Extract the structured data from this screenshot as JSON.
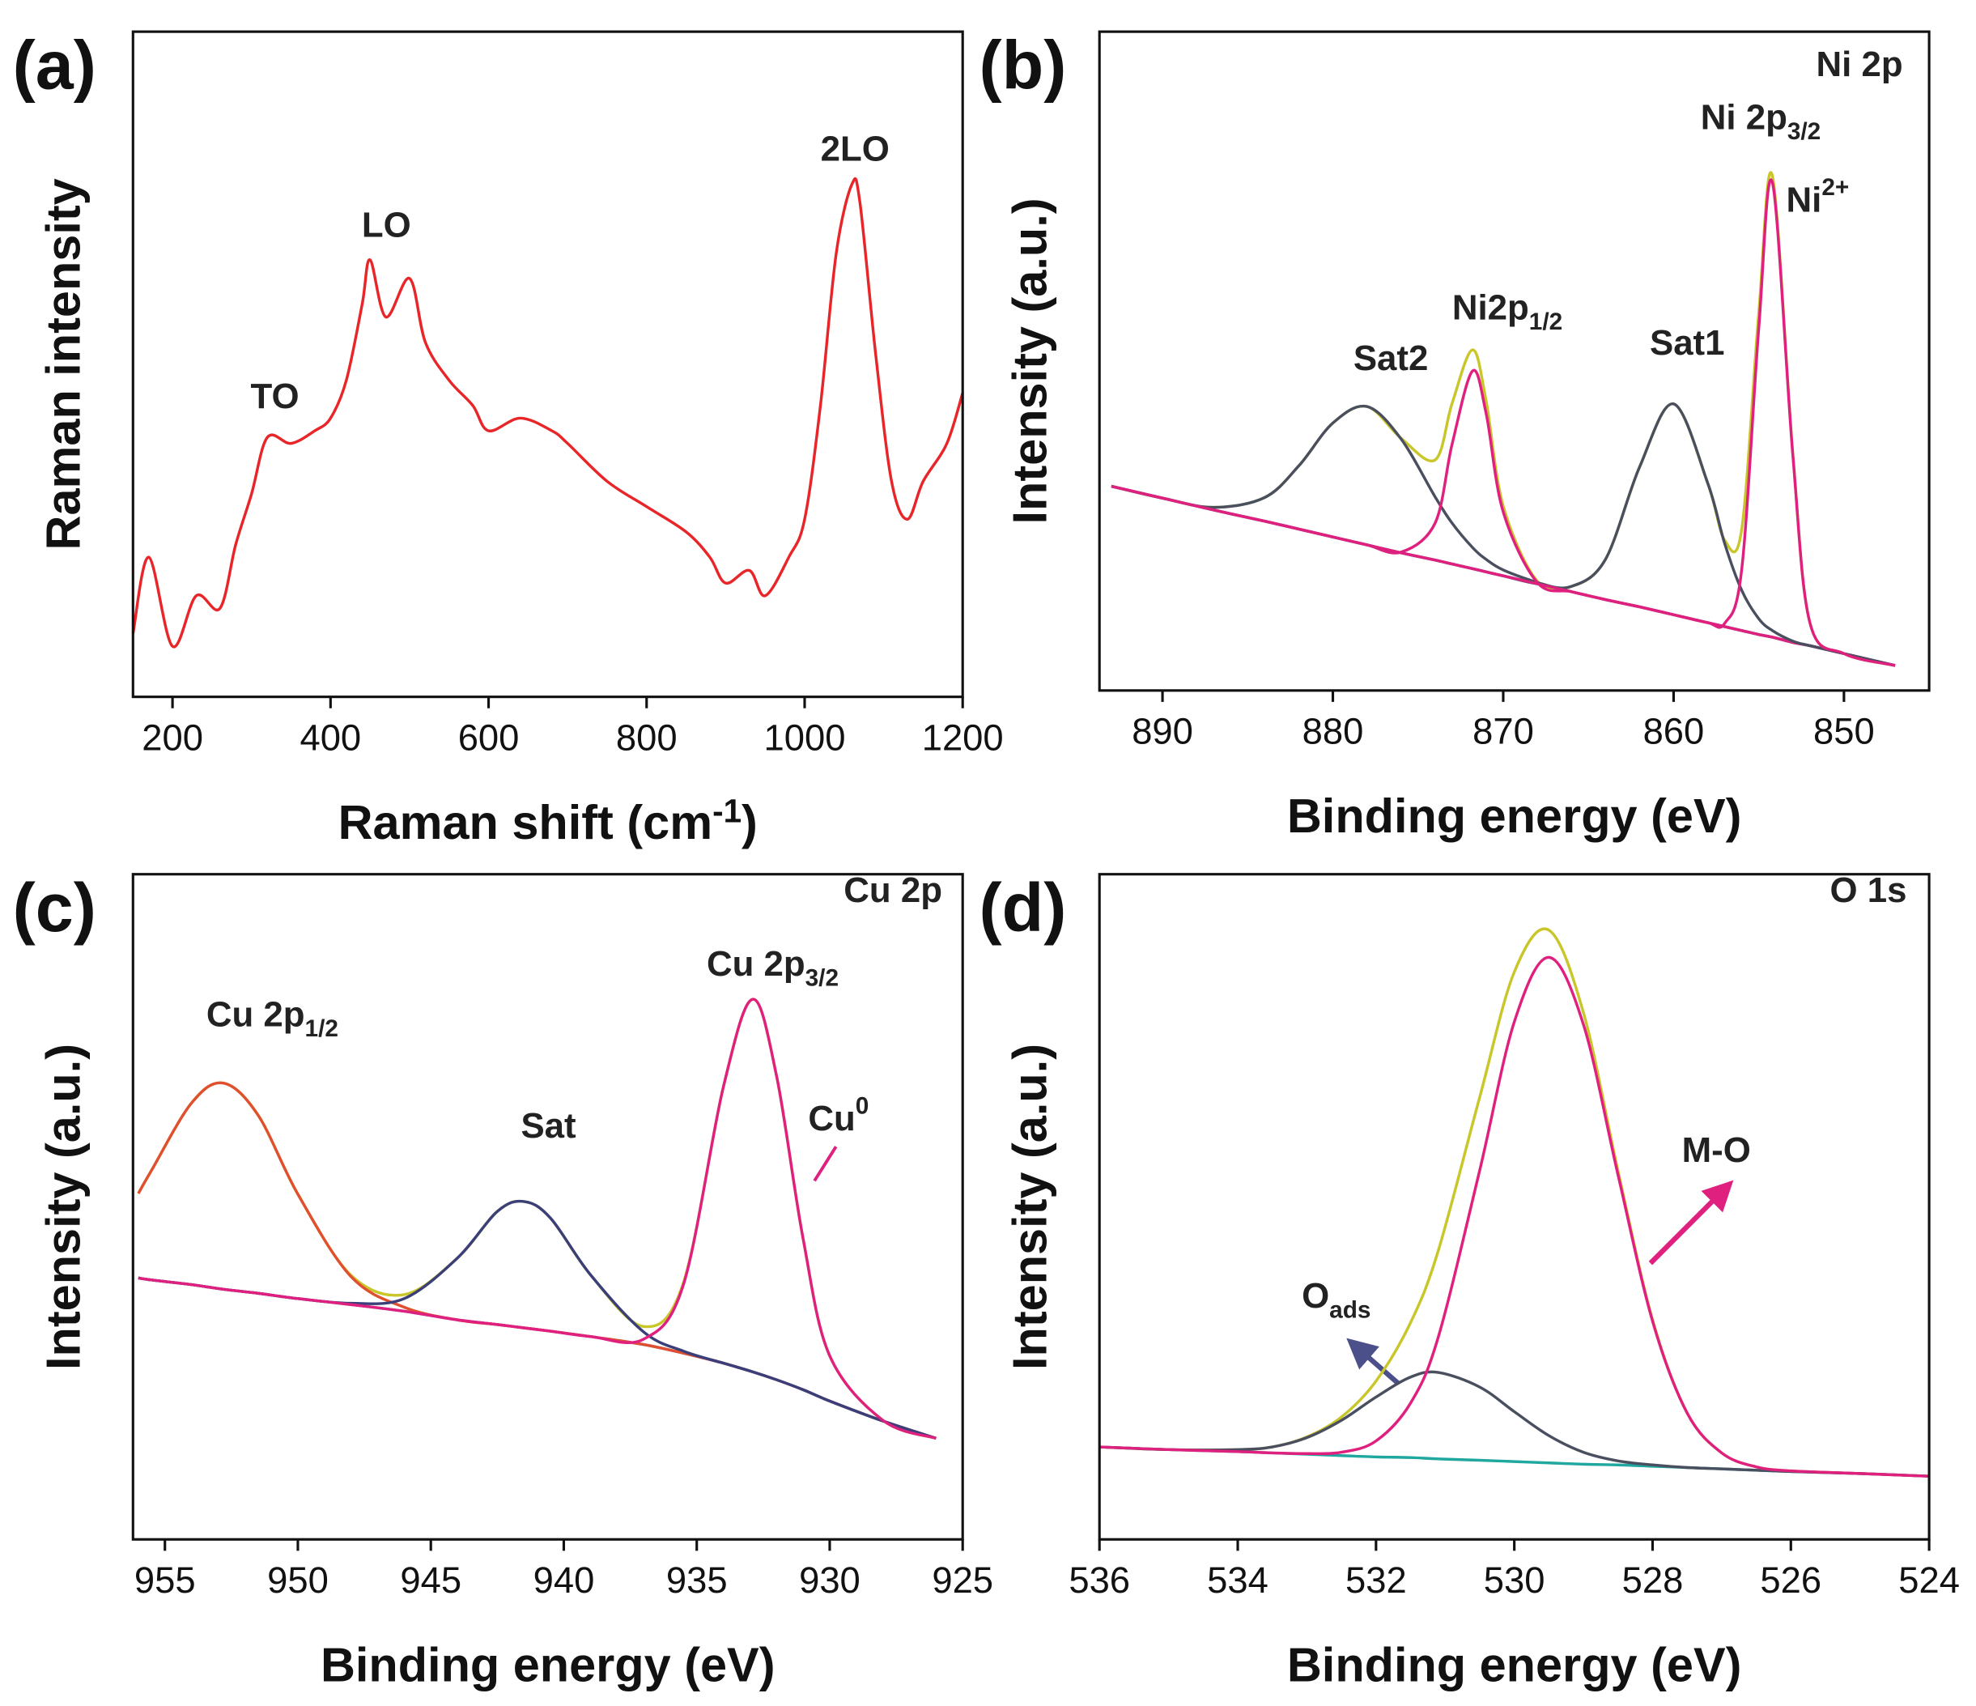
{
  "chart_data": [
    {
      "type": "line",
      "panel": "(a)",
      "x_label": {
        "text": "Raman shift (cm",
        "sup": "-1",
        "after": ")"
      },
      "y_label": "Raman intensity",
      "xlim": [
        150,
        1200
      ],
      "xticks": [
        200,
        400,
        600,
        800,
        1000,
        1200
      ],
      "ylim": [
        0,
        100
      ],
      "x": [
        150,
        170,
        200,
        230,
        260,
        280,
        300,
        320,
        350,
        380,
        400,
        420,
        440,
        450,
        470,
        500,
        520,
        550,
        580,
        600,
        640,
        680,
        700,
        750,
        800,
        850,
        880,
        900,
        930,
        950,
        980,
        1000,
        1020,
        1040,
        1060,
        1070,
        1090,
        1110,
        1130,
        1150,
        1180,
        1200
      ],
      "series": [
        {
          "color": "#e8262a",
          "values": [
            9.5,
            21,
            7.6,
            15.2,
            13.3,
            22.9,
            30.5,
            39,
            38.1,
            40,
            41.9,
            47.6,
            59,
            65.7,
            57.1,
            62.9,
            53.3,
            47.6,
            43.8,
            40,
            41.9,
            40,
            38.1,
            32.4,
            28.6,
            24.8,
            21,
            17.1,
            19,
            15.2,
            21,
            26.7,
            43.8,
            66.7,
            77.1,
            74.3,
            51.4,
            32.4,
            26.7,
            32.4,
            38.1,
            45.7
          ]
        }
      ],
      "annotations": [
        {
          "text": "TO"
        },
        {
          "text": "LO"
        },
        {
          "text": "2LO"
        }
      ]
    },
    {
      "type": "line",
      "panel": "(b)",
      "x_label": {
        "text": "Binding energy (eV)"
      },
      "y_label": "Intensity (a.u.)",
      "xlim": [
        893.7,
        845
      ],
      "xticks": [
        890,
        880,
        870,
        860,
        850
      ],
      "ylim": [
        0,
        100
      ],
      "x": [
        893,
        890,
        887,
        884,
        882,
        880,
        878,
        876,
        874,
        873,
        871.8,
        871,
        870,
        868,
        866,
        864,
        862,
        860,
        858,
        857,
        856,
        855,
        854.2,
        853,
        852,
        850,
        847
      ],
      "series": [
        {
          "color": "#c9c62a",
          "values": [
            31.0,
            29.2,
            27.8,
            29.3,
            34.1,
            40.6,
            43.1,
            38.3,
            35.0,
            43.6,
            51.7,
            43.9,
            28.0,
            16.6,
            15.8,
            19.9,
            33.9,
            43.5,
            31.5,
            22.8,
            24.5,
            57.4,
            78.1,
            35.9,
            10.3,
            5.6,
            3.8
          ]
        },
        {
          "color": "#6b3f9e",
          "values": [
            31.0,
            29.2,
            27.4,
            25.7,
            24.5,
            23.3,
            22.1,
            20.9,
            19.8,
            19.2,
            18.5,
            18.0,
            17.4,
            16.2,
            15.0,
            13.8,
            12.7,
            11.5,
            10.3,
            9.7,
            9.1,
            8.5,
            8.1,
            7.3,
            6.8,
            5.6,
            3.8
          ]
        },
        {
          "color": "#4a4f60",
          "values": [
            31.0,
            29.2,
            27.8,
            29.3,
            34.1,
            40.6,
            43.1,
            38.2,
            29.4,
            25.4,
            21.7,
            19.9,
            18.3,
            16.4,
            15.0,
            13.8,
            12.7,
            11.5,
            10.3,
            9.7,
            9.1,
            8.5,
            8.1,
            7.3,
            6.8,
            5.6,
            3.8
          ]
        },
        {
          "color": "#e0207f",
          "values": [
            31.0,
            29.2,
            27.4,
            25.7,
            24.5,
            23.3,
            22.1,
            21.0,
            25.4,
            37.4,
            48.5,
            42.0,
            27.1,
            16.4,
            15.0,
            13.8,
            12.7,
            11.5,
            10.3,
            9.7,
            9.1,
            8.5,
            8.1,
            7.3,
            6.8,
            5.6,
            3.8
          ]
        },
        {
          "color": "#4a4f60",
          "values": [
            31.0,
            29.2,
            27.4,
            25.7,
            24.5,
            23.3,
            22.1,
            20.9,
            19.8,
            19.2,
            18.5,
            18.0,
            17.4,
            16.2,
            15.8,
            19.9,
            33.9,
            43.5,
            31.5,
            22.3,
            15.2,
            10.9,
            9.1,
            7.5,
            6.8,
            5.6,
            3.8
          ]
        },
        {
          "color": "#e0207f",
          "values": [
            31.0,
            29.2,
            27.4,
            25.7,
            24.5,
            23.3,
            22.1,
            20.9,
            19.8,
            19.2,
            18.5,
            18.0,
            17.4,
            16.2,
            15.0,
            13.8,
            12.7,
            11.5,
            10.3,
            10.2,
            18.4,
            55.0,
            77.1,
            35.7,
            10.3,
            5.6,
            3.8
          ]
        }
      ],
      "annotations": [
        {
          "text": "Ni 2p"
        },
        {
          "text": "Ni 2p",
          "sub": "3/2"
        },
        {
          "text": "Ni",
          "sup": "2+",
          "color": "#e0207f"
        },
        {
          "text": "Sat2"
        },
        {
          "text": "Ni2p",
          "sub": "1/2"
        },
        {
          "text": "Sat1"
        }
      ]
    },
    {
      "type": "line",
      "panel": "(c)",
      "x_label": {
        "text": "Binding energy (eV)"
      },
      "y_label": "Intensity (a.u.)",
      "xlim": [
        956.2,
        925
      ],
      "xticks": [
        955,
        950,
        945,
        940,
        935,
        930,
        925
      ],
      "ylim": [
        0,
        100
      ],
      "x": [
        956,
        955.5,
        954,
        952.8,
        951.5,
        950,
        948,
        946,
        944,
        942.5,
        941.5,
        940.5,
        939,
        937,
        935.5,
        934,
        932.9,
        932,
        931,
        930,
        928,
        926
      ],
      "series": [
        {
          "color": "#6b3f9e",
          "values": [
            39.3,
            39,
            38.3,
            37.6,
            37,
            36.2,
            35.3,
            34.3,
            33,
            32.3,
            31.8,
            31.3,
            30.5,
            29.3,
            28,
            26.5,
            25.2,
            24,
            22.5,
            20.8,
            17.8,
            15.2
          ]
        },
        {
          "color": "#c9c62a",
          "values": [
            52.0,
            55.5,
            65.6,
            68.6,
            63.8,
            51.9,
            39.7,
            36.8,
            42.3,
            49.3,
            50.8,
            48.3,
            39.8,
            32.0,
            38.6,
            68.0,
            81.2,
            69.7,
            45.2,
            27.6,
            17.9,
            15.2
          ]
        },
        {
          "color": "#e05030",
          "values": [
            52.0,
            55.5,
            65.6,
            68.6,
            63.8,
            51.9,
            39.5,
            34.9,
            33,
            32.3,
            31.8,
            31.3,
            30.5,
            29.3,
            28,
            26.5,
            25.2,
            24,
            22.5,
            20.8,
            17.8,
            15.2
          ]
        },
        {
          "color": "#3a3f7a",
          "values": [
            39.3,
            39,
            38.3,
            37.6,
            37,
            36.2,
            35.5,
            36.2,
            42.3,
            49.3,
            50.8,
            48.3,
            39.8,
            31.2,
            28.3,
            26.5,
            25.2,
            24,
            22.5,
            20.8,
            17.8,
            15.2
          ]
        },
        {
          "color": "#e0207f",
          "values": [
            39.3,
            39,
            38.3,
            37.6,
            37,
            36.2,
            35.3,
            34.3,
            33,
            32.3,
            31.8,
            31.3,
            30.5,
            30.1,
            38.3,
            68.0,
            81.2,
            69.7,
            45.2,
            27.6,
            17.9,
            15.2
          ]
        }
      ],
      "annotations": [
        {
          "text": "Cu 2p"
        },
        {
          "text": "Cu 2p",
          "sub": "1/2"
        },
        {
          "text": "Sat"
        },
        {
          "text": "Cu 2p",
          "sub": "3/2"
        },
        {
          "text": "Cu",
          "sup": "0",
          "color": "#e0207f"
        }
      ]
    },
    {
      "type": "line",
      "panel": "(d)",
      "x_label": {
        "text": "Binding energy (eV)"
      },
      "y_label": "Intensity (a.u.)",
      "xlim": [
        536,
        524
      ],
      "xticks": [
        536,
        534,
        532,
        530,
        528,
        526,
        524
      ],
      "ylim": [
        0,
        100
      ],
      "x": [
        536,
        535,
        534,
        533.5,
        533,
        532.5,
        532,
        531.5,
        531.1,
        530.5,
        530,
        529.5,
        529,
        528.5,
        528,
        527.5,
        527,
        526.5,
        526,
        525,
        524
      ],
      "series": [
        {
          "color": "#1fa7a0",
          "values": [
            13.9,
            13.5,
            13.2,
            13.0,
            12.8,
            12.6,
            12.4,
            12.3,
            12.1,
            11.9,
            11.7,
            11.5,
            11.3,
            11.2,
            11.0,
            10.8,
            10.6,
            10.4,
            10.2,
            9.9,
            9.5
          ]
        },
        {
          "color": "#c9c62a",
          "values": [
            13.9,
            13.5,
            13.5,
            13.9,
            15.4,
            18.4,
            23.8,
            32.6,
            43.4,
            66.5,
            85.3,
            91.6,
            79.2,
            55.4,
            33.0,
            19.0,
            13.0,
            10.9,
            10.3,
            9.9,
            9.5
          ]
        },
        {
          "color": "#4a4f60",
          "values": [
            13.9,
            13.5,
            13.5,
            13.9,
            15.3,
            17.9,
            21.4,
            24.4,
            25.1,
            22.9,
            19.2,
            15.6,
            13.1,
            11.8,
            11.2,
            10.8,
            10.6,
            10.4,
            10.2,
            9.9,
            9.5
          ]
        },
        {
          "color": "#e0207f",
          "values": [
            13.9,
            13.5,
            13.2,
            13.0,
            12.9,
            13.1,
            14.8,
            20.5,
            30.4,
            55.5,
            77.8,
            87.5,
            77.4,
            54.8,
            32.8,
            19.0,
            13.0,
            10.9,
            10.3,
            9.9,
            9.5
          ]
        }
      ],
      "annotations": [
        {
          "text": "O 1s"
        },
        {
          "text": "M-O",
          "color": "#e0207f"
        },
        {
          "text": "O",
          "sub": "ads",
          "color": "#4b4f8a"
        }
      ]
    }
  ]
}
